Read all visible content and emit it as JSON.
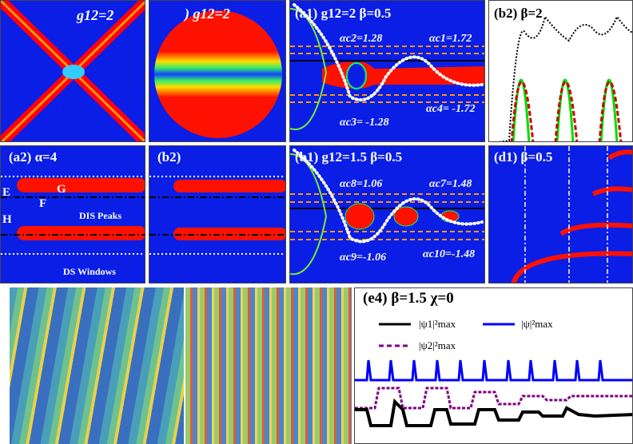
{
  "panels": {
    "top1": {
      "label": "g12=2"
    },
    "top2": {
      "label": ") g12=2"
    },
    "a1": {
      "label": "(a1)  g12=2  β=0.5",
      "ac1": "αc1=1.72",
      "ac2": "αc2=1.28",
      "ac3": "αc3= -1.28",
      "ac4": "αc4= -1.72"
    },
    "b2top": {
      "label": "(b2)  β=2"
    },
    "a2": {
      "label": "(a2)  α=4",
      "E": "E",
      "F": "F",
      "G": "G",
      "H": "H",
      "dis": "DIS Peaks",
      "ds": "DS Windows"
    },
    "b2": {
      "label": "(b2)"
    },
    "b1": {
      "label": "(b1)  g12=1.5  β=0.5",
      "ac7": "αc7=1.48",
      "ac8": "αc8=1.06",
      "ac9": "αc9=-1.06",
      "ac10": "αc10=-1.48"
    },
    "d1": {
      "label": "(d1)  β=0.5"
    },
    "e4": {
      "label": "(e4)  β=1.5  χ=0",
      "legend": [
        "|ψ1|²max",
        "|ψ|²max",
        "|ψ2|²max"
      ]
    }
  },
  "colors": {
    "bg": "#0a1ee6",
    "red": "#ff1a00",
    "black": "#000000",
    "blue": "#0000ff",
    "purple": "#800080"
  }
}
